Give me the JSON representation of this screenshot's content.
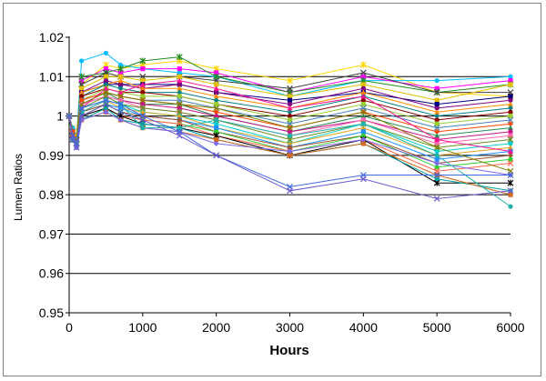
{
  "chart_data": {
    "type": "line",
    "title": "",
    "xlabel": "Hours",
    "ylabel": "Lumen Ratios",
    "xlim": [
      0,
      6000
    ],
    "ylim": [
      0.95,
      1.02
    ],
    "xticks": [
      "0",
      "1000",
      "2000",
      "3000",
      "4000",
      "5000",
      "6000"
    ],
    "yticks": [
      "0.95",
      "0.96",
      "0.97",
      "0.98",
      "0.99",
      "1",
      "1.01",
      "1.02"
    ],
    "major_gridlines": [
      0.96,
      0.97,
      0.98,
      0.99,
      1.0,
      1.01
    ],
    "legend": "none",
    "x": [
      0,
      48,
      100,
      168,
      500,
      700,
      1000,
      1500,
      2000,
      3000,
      4000,
      5000,
      6000
    ],
    "series": [
      {
        "color": "#ffd700",
        "marker": "star",
        "values": [
          1.0,
          0.997,
          0.995,
          1.008,
          1.013,
          1.012,
          1.013,
          1.014,
          1.012,
          1.009,
          1.013,
          1.006,
          1.005
        ]
      },
      {
        "color": "#00bfff",
        "marker": "circle",
        "values": [
          1.0,
          0.997,
          0.994,
          1.014,
          1.016,
          1.013,
          1.012,
          1.011,
          1.01,
          1.005,
          1.009,
          1.009,
          1.01
        ]
      },
      {
        "color": "#ff00ff",
        "marker": "square",
        "values": [
          1.0,
          0.996,
          0.994,
          1.009,
          1.012,
          1.011,
          1.012,
          1.012,
          1.011,
          1.006,
          1.01,
          1.007,
          1.009
        ]
      },
      {
        "color": "#228b22",
        "marker": "star",
        "values": [
          1.0,
          0.996,
          0.995,
          1.01,
          1.011,
          1.012,
          1.014,
          1.015,
          1.01,
          1.006,
          1.009,
          1.006,
          1.008
        ]
      },
      {
        "color": "#404040",
        "marker": "cross",
        "values": [
          1.0,
          0.996,
          0.994,
          1.008,
          1.011,
          1.01,
          1.01,
          1.01,
          1.009,
          1.007,
          1.011,
          1.006,
          1.006
        ]
      },
      {
        "color": "#e0c000",
        "marker": "square",
        "values": [
          1.0,
          0.996,
          0.995,
          1.007,
          1.01,
          1.01,
          1.009,
          1.01,
          1.008,
          1.005,
          1.008,
          1.004,
          1.008
        ]
      },
      {
        "color": "#000080",
        "marker": "square",
        "values": [
          1.0,
          0.995,
          0.994,
          1.006,
          1.008,
          1.008,
          1.008,
          1.008,
          1.006,
          1.004,
          1.006,
          1.003,
          1.005
        ]
      },
      {
        "color": "#800080",
        "marker": "circle",
        "values": [
          1.0,
          0.995,
          0.993,
          1.006,
          1.009,
          1.008,
          1.007,
          1.008,
          1.006,
          1.003,
          1.007,
          1.002,
          1.004
        ]
      },
      {
        "color": "#ff8c00",
        "marker": "triangle",
        "values": [
          1.0,
          0.996,
          0.994,
          1.006,
          1.008,
          1.009,
          1.007,
          1.007,
          1.005,
          1.002,
          1.006,
          1.001,
          1.003
        ]
      },
      {
        "color": "#008080",
        "marker": "diamond",
        "values": [
          1.0,
          0.995,
          0.994,
          1.005,
          1.008,
          1.007,
          1.006,
          1.006,
          1.004,
          1.001,
          1.005,
          1.0,
          1.002
        ]
      },
      {
        "color": "#8b0000",
        "marker": "circle",
        "values": [
          1.0,
          0.996,
          0.993,
          1.005,
          1.007,
          1.006,
          1.006,
          1.005,
          1.003,
          1.0,
          1.004,
          0.999,
          1.001
        ]
      },
      {
        "color": "#9acd32",
        "marker": "square",
        "values": [
          1.0,
          0.995,
          0.993,
          1.004,
          1.007,
          1.006,
          1.005,
          1.005,
          1.003,
          0.999,
          1.003,
          0.998,
          1.0
        ]
      },
      {
        "color": "#4682b4",
        "marker": "cross",
        "values": [
          1.0,
          0.995,
          0.994,
          1.004,
          1.006,
          1.005,
          1.004,
          1.004,
          1.002,
          0.998,
          1.002,
          0.997,
          0.999
        ]
      },
      {
        "color": "#ff4500",
        "marker": "diamond",
        "values": [
          1.0,
          0.996,
          0.994,
          1.004,
          1.006,
          1.005,
          1.004,
          1.003,
          1.001,
          0.997,
          1.001,
          0.996,
          0.998
        ]
      },
      {
        "color": "#2e8b57",
        "marker": "triangle",
        "values": [
          1.0,
          0.995,
          0.993,
          1.003,
          1.006,
          1.004,
          1.003,
          1.003,
          1.0,
          0.996,
          1.0,
          0.995,
          0.997
        ]
      },
      {
        "color": "#c71585",
        "marker": "circle",
        "values": [
          1.0,
          0.995,
          0.994,
          1.003,
          1.005,
          1.004,
          1.003,
          1.002,
          1.0,
          0.996,
          0.999,
          0.994,
          0.996
        ]
      },
      {
        "color": "#ff69b4",
        "marker": "square",
        "values": [
          1.0,
          0.994,
          0.993,
          1.003,
          1.005,
          1.004,
          1.002,
          1.001,
          0.999,
          0.995,
          0.999,
          0.993,
          0.995
        ]
      },
      {
        "color": "#6b8e23",
        "marker": "star",
        "values": [
          1.0,
          0.995,
          0.994,
          1.002,
          1.005,
          1.003,
          1.002,
          1.001,
          0.999,
          0.994,
          0.998,
          0.992,
          0.994
        ]
      },
      {
        "color": "#00ced1",
        "marker": "circle",
        "values": [
          1.0,
          0.994,
          0.993,
          1.002,
          1.004,
          1.003,
          1.001,
          1.0,
          0.998,
          0.993,
          0.998,
          0.991,
          0.993
        ]
      },
      {
        "color": "#daa520",
        "marker": "triangle",
        "values": [
          1.0,
          0.995,
          0.993,
          1.001,
          1.004,
          1.002,
          1.001,
          1.0,
          0.997,
          0.993,
          0.997,
          0.99,
          0.992
        ]
      },
      {
        "color": "#1e90ff",
        "marker": "square",
        "values": [
          1.0,
          0.994,
          0.994,
          1.001,
          1.003,
          1.002,
          1.0,
          0.999,
          0.997,
          0.992,
          0.996,
          0.989,
          0.991
        ]
      },
      {
        "color": "#a0522d",
        "marker": "diamond",
        "values": [
          1.0,
          0.995,
          0.993,
          1.001,
          1.003,
          1.001,
          1.0,
          0.999,
          0.996,
          0.992,
          0.995,
          0.988,
          0.99
        ]
      },
      {
        "color": "#32cd32",
        "marker": "circle",
        "values": [
          1.0,
          0.994,
          0.993,
          1.0,
          1.003,
          1.001,
          0.999,
          0.998,
          0.996,
          0.991,
          0.995,
          0.987,
          0.989
        ]
      },
      {
        "color": "#ff6347",
        "marker": "cross",
        "values": [
          1.0,
          0.995,
          0.993,
          1.0,
          1.002,
          1.0,
          0.999,
          0.998,
          0.995,
          0.991,
          0.994,
          0.986,
          0.988
        ]
      },
      {
        "color": "#000000",
        "marker": "star",
        "values": [
          1.0,
          0.994,
          0.993,
          1.0,
          1.002,
          1.0,
          0.998,
          0.997,
          0.995,
          0.99,
          0.994,
          0.983,
          0.983
        ]
      },
      {
        "color": "#00a0a0",
        "marker": "circle",
        "values": [
          1.0,
          0.994,
          0.992,
          0.999,
          1.002,
          0.999,
          0.998,
          0.997,
          0.994,
          0.99,
          0.993,
          0.984,
          0.981
        ]
      },
      {
        "color": "#d2691e",
        "marker": "square",
        "values": [
          1.0,
          0.995,
          0.993,
          0.999,
          1.001,
          0.999,
          0.997,
          0.996,
          0.994,
          0.99,
          0.993,
          0.985,
          0.98
        ]
      },
      {
        "color": "#7b68ee",
        "marker": "diamond",
        "values": [
          1.0,
          0.994,
          0.992,
          0.999,
          1.001,
          0.999,
          0.997,
          0.996,
          0.993,
          0.991,
          0.994,
          0.988,
          0.985
        ]
      },
      {
        "color": "#ff1493",
        "marker": "triangle",
        "values": [
          1.0,
          0.995,
          0.993,
          1.002,
          1.007,
          1.006,
          1.008,
          1.009,
          1.007,
          1.002,
          1.005,
          0.994,
          0.991
        ]
      },
      {
        "color": "#20b2aa",
        "marker": "circle",
        "values": [
          1.0,
          0.994,
          0.993,
          1.001,
          1.004,
          1.003,
          0.997,
          0.997,
          0.999,
          0.995,
          0.998,
          0.99,
          0.977
        ]
      },
      {
        "color": "#808000",
        "marker": "cross",
        "values": [
          1.0,
          0.995,
          0.994,
          1.003,
          1.006,
          1.005,
          1.004,
          1.003,
          1.002,
          0.997,
          1.001,
          0.992,
          0.986
        ]
      },
      {
        "color": "#4169e1",
        "marker": "cross",
        "values": [
          1.0,
          0.995,
          0.993,
          1.002,
          1.004,
          1.003,
          1.0,
          0.996,
          0.99,
          0.982,
          0.985,
          0.985,
          0.985
        ]
      },
      {
        "color": "#6a5acd",
        "marker": "cross",
        "values": [
          1.0,
          0.994,
          0.992,
          1.0,
          1.003,
          1.001,
          0.999,
          0.995,
          0.99,
          0.981,
          0.984,
          0.979,
          0.981
        ]
      }
    ]
  }
}
